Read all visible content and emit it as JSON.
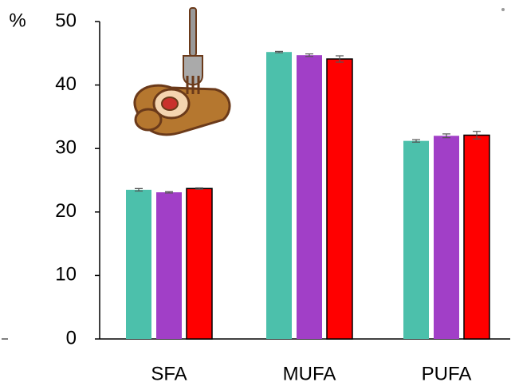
{
  "chart_data": {
    "type": "bar",
    "y_label": "%",
    "categories": [
      "SFA",
      "MUFA",
      "PUFA"
    ],
    "series": [
      {
        "color": "#4cc0ab",
        "values": [
          23.5,
          45.2,
          31.2
        ],
        "errors": [
          0.2,
          0.1,
          0.2
        ]
      },
      {
        "color": "#a13fc7",
        "values": [
          23.1,
          44.7,
          32.0
        ],
        "errors": [
          0.1,
          0.2,
          0.3
        ]
      },
      {
        "color": "#ff0000",
        "edgecolor": "#000000",
        "values": [
          23.7,
          44.1,
          32.1
        ],
        "errors": [
          0.1,
          0.5,
          0.6
        ]
      }
    ],
    "ylim": [
      0,
      50
    ],
    "yticks": [
      0,
      10,
      20,
      30,
      40,
      50
    ]
  }
}
